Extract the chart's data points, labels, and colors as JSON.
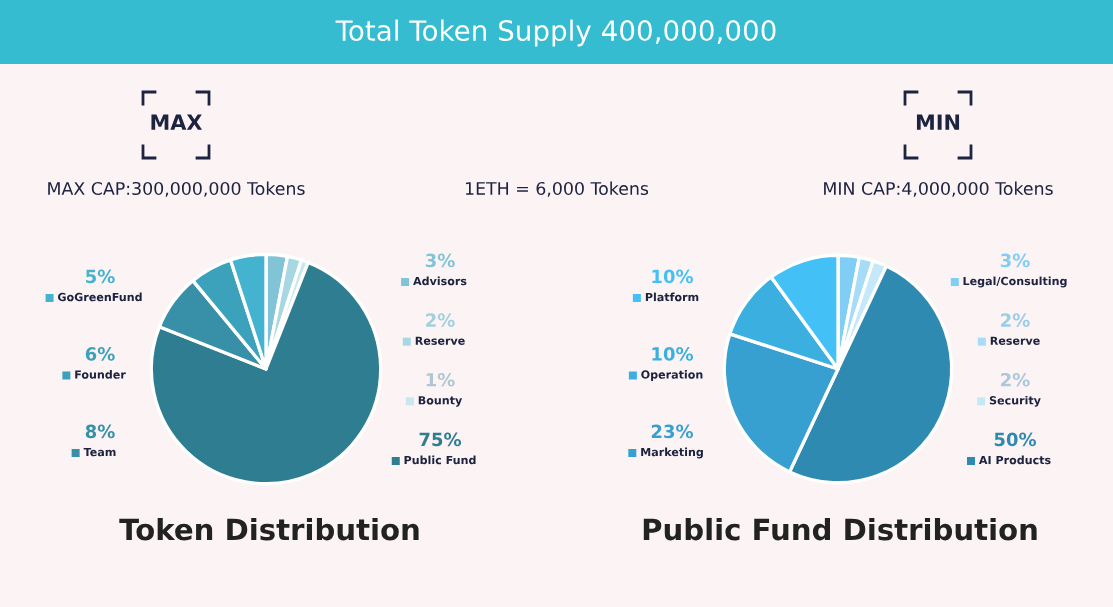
{
  "chart_data": [
    {
      "type": "other",
      "title": "Total Token Supply 400,000,000",
      "annotations": [
        "1ETH = 6,000 Tokens"
      ]
    },
    {
      "type": "pie",
      "title": "Token Distribution",
      "annotations": [
        "MAX",
        "MAX CAP:300,000,000 Tokens"
      ],
      "legend": "right",
      "categories": [
        "Advisors",
        "Reserve",
        "Bounty",
        "Public Fund",
        "Team",
        "Founder",
        "GoGreenFund"
      ],
      "values": [
        3,
        2,
        1,
        75,
        8,
        6,
        5
      ],
      "value_labels": [
        "3%",
        "2%",
        "1%",
        "75%",
        "8%",
        "6%",
        "5%"
      ],
      "colors": [
        "#80c4d6",
        "#a8d7e4",
        "#cae7ef",
        "#2e7d91",
        "#3790a8",
        "#3ca2bb",
        "#44b3cf"
      ]
    },
    {
      "type": "pie",
      "title": "Public Fund Distribution",
      "annotations": [
        "MIN",
        "MIN CAP:4,000,000 Tokens"
      ],
      "legend": "right",
      "categories": [
        "Legal/Consulting",
        "Reserve",
        "Security",
        "AI Products",
        "Marketing",
        "Operation",
        "Platform"
      ],
      "values": [
        3,
        2,
        2,
        50,
        23,
        10,
        10
      ],
      "value_labels": [
        "3%",
        "2%",
        "2%",
        "50%",
        "23%",
        "10%",
        "10%"
      ],
      "colors": [
        "#80cdf5",
        "#a6dcf7",
        "#c6e9fa",
        "#2e8ab0",
        "#37a0d0",
        "#3aafe0",
        "#43c1f6"
      ]
    }
  ]
}
